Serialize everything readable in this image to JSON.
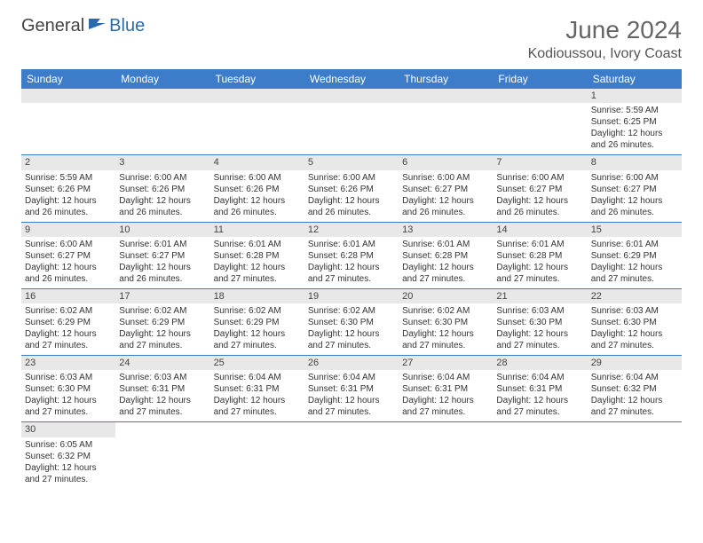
{
  "logo": {
    "part1": "General",
    "part2": "Blue"
  },
  "title": "June 2024",
  "location": "Kodioussou, Ivory Coast",
  "colors": {
    "header_bg": "#3d7cc9",
    "header_fg": "#ffffff",
    "daynum_bg": "#e8e8e8",
    "rule": "#3d7cc9",
    "logo_blue": "#2a6bb0",
    "title_color": "#666666",
    "text": "#333333"
  },
  "day_headers": [
    "Sunday",
    "Monday",
    "Tuesday",
    "Wednesday",
    "Thursday",
    "Friday",
    "Saturday"
  ],
  "weeks": [
    [
      null,
      null,
      null,
      null,
      null,
      null,
      {
        "n": "1",
        "sr": "Sunrise: 5:59 AM",
        "ss": "Sunset: 6:25 PM",
        "d1": "Daylight: 12 hours",
        "d2": "and 26 minutes."
      }
    ],
    [
      {
        "n": "2",
        "sr": "Sunrise: 5:59 AM",
        "ss": "Sunset: 6:26 PM",
        "d1": "Daylight: 12 hours",
        "d2": "and 26 minutes."
      },
      {
        "n": "3",
        "sr": "Sunrise: 6:00 AM",
        "ss": "Sunset: 6:26 PM",
        "d1": "Daylight: 12 hours",
        "d2": "and 26 minutes."
      },
      {
        "n": "4",
        "sr": "Sunrise: 6:00 AM",
        "ss": "Sunset: 6:26 PM",
        "d1": "Daylight: 12 hours",
        "d2": "and 26 minutes."
      },
      {
        "n": "5",
        "sr": "Sunrise: 6:00 AM",
        "ss": "Sunset: 6:26 PM",
        "d1": "Daylight: 12 hours",
        "d2": "and 26 minutes."
      },
      {
        "n": "6",
        "sr": "Sunrise: 6:00 AM",
        "ss": "Sunset: 6:27 PM",
        "d1": "Daylight: 12 hours",
        "d2": "and 26 minutes."
      },
      {
        "n": "7",
        "sr": "Sunrise: 6:00 AM",
        "ss": "Sunset: 6:27 PM",
        "d1": "Daylight: 12 hours",
        "d2": "and 26 minutes."
      },
      {
        "n": "8",
        "sr": "Sunrise: 6:00 AM",
        "ss": "Sunset: 6:27 PM",
        "d1": "Daylight: 12 hours",
        "d2": "and 26 minutes."
      }
    ],
    [
      {
        "n": "9",
        "sr": "Sunrise: 6:00 AM",
        "ss": "Sunset: 6:27 PM",
        "d1": "Daylight: 12 hours",
        "d2": "and 26 minutes."
      },
      {
        "n": "10",
        "sr": "Sunrise: 6:01 AM",
        "ss": "Sunset: 6:27 PM",
        "d1": "Daylight: 12 hours",
        "d2": "and 26 minutes."
      },
      {
        "n": "11",
        "sr": "Sunrise: 6:01 AM",
        "ss": "Sunset: 6:28 PM",
        "d1": "Daylight: 12 hours",
        "d2": "and 27 minutes."
      },
      {
        "n": "12",
        "sr": "Sunrise: 6:01 AM",
        "ss": "Sunset: 6:28 PM",
        "d1": "Daylight: 12 hours",
        "d2": "and 27 minutes."
      },
      {
        "n": "13",
        "sr": "Sunrise: 6:01 AM",
        "ss": "Sunset: 6:28 PM",
        "d1": "Daylight: 12 hours",
        "d2": "and 27 minutes."
      },
      {
        "n": "14",
        "sr": "Sunrise: 6:01 AM",
        "ss": "Sunset: 6:28 PM",
        "d1": "Daylight: 12 hours",
        "d2": "and 27 minutes."
      },
      {
        "n": "15",
        "sr": "Sunrise: 6:01 AM",
        "ss": "Sunset: 6:29 PM",
        "d1": "Daylight: 12 hours",
        "d2": "and 27 minutes."
      }
    ],
    [
      {
        "n": "16",
        "sr": "Sunrise: 6:02 AM",
        "ss": "Sunset: 6:29 PM",
        "d1": "Daylight: 12 hours",
        "d2": "and 27 minutes."
      },
      {
        "n": "17",
        "sr": "Sunrise: 6:02 AM",
        "ss": "Sunset: 6:29 PM",
        "d1": "Daylight: 12 hours",
        "d2": "and 27 minutes."
      },
      {
        "n": "18",
        "sr": "Sunrise: 6:02 AM",
        "ss": "Sunset: 6:29 PM",
        "d1": "Daylight: 12 hours",
        "d2": "and 27 minutes."
      },
      {
        "n": "19",
        "sr": "Sunrise: 6:02 AM",
        "ss": "Sunset: 6:30 PM",
        "d1": "Daylight: 12 hours",
        "d2": "and 27 minutes."
      },
      {
        "n": "20",
        "sr": "Sunrise: 6:02 AM",
        "ss": "Sunset: 6:30 PM",
        "d1": "Daylight: 12 hours",
        "d2": "and 27 minutes."
      },
      {
        "n": "21",
        "sr": "Sunrise: 6:03 AM",
        "ss": "Sunset: 6:30 PM",
        "d1": "Daylight: 12 hours",
        "d2": "and 27 minutes."
      },
      {
        "n": "22",
        "sr": "Sunrise: 6:03 AM",
        "ss": "Sunset: 6:30 PM",
        "d1": "Daylight: 12 hours",
        "d2": "and 27 minutes."
      }
    ],
    [
      {
        "n": "23",
        "sr": "Sunrise: 6:03 AM",
        "ss": "Sunset: 6:30 PM",
        "d1": "Daylight: 12 hours",
        "d2": "and 27 minutes."
      },
      {
        "n": "24",
        "sr": "Sunrise: 6:03 AM",
        "ss": "Sunset: 6:31 PM",
        "d1": "Daylight: 12 hours",
        "d2": "and 27 minutes."
      },
      {
        "n": "25",
        "sr": "Sunrise: 6:04 AM",
        "ss": "Sunset: 6:31 PM",
        "d1": "Daylight: 12 hours",
        "d2": "and 27 minutes."
      },
      {
        "n": "26",
        "sr": "Sunrise: 6:04 AM",
        "ss": "Sunset: 6:31 PM",
        "d1": "Daylight: 12 hours",
        "d2": "and 27 minutes."
      },
      {
        "n": "27",
        "sr": "Sunrise: 6:04 AM",
        "ss": "Sunset: 6:31 PM",
        "d1": "Daylight: 12 hours",
        "d2": "and 27 minutes."
      },
      {
        "n": "28",
        "sr": "Sunrise: 6:04 AM",
        "ss": "Sunset: 6:31 PM",
        "d1": "Daylight: 12 hours",
        "d2": "and 27 minutes."
      },
      {
        "n": "29",
        "sr": "Sunrise: 6:04 AM",
        "ss": "Sunset: 6:32 PM",
        "d1": "Daylight: 12 hours",
        "d2": "and 27 minutes."
      }
    ],
    [
      {
        "n": "30",
        "sr": "Sunrise: 6:05 AM",
        "ss": "Sunset: 6:32 PM",
        "d1": "Daylight: 12 hours",
        "d2": "and 27 minutes."
      },
      null,
      null,
      null,
      null,
      null,
      null
    ]
  ]
}
